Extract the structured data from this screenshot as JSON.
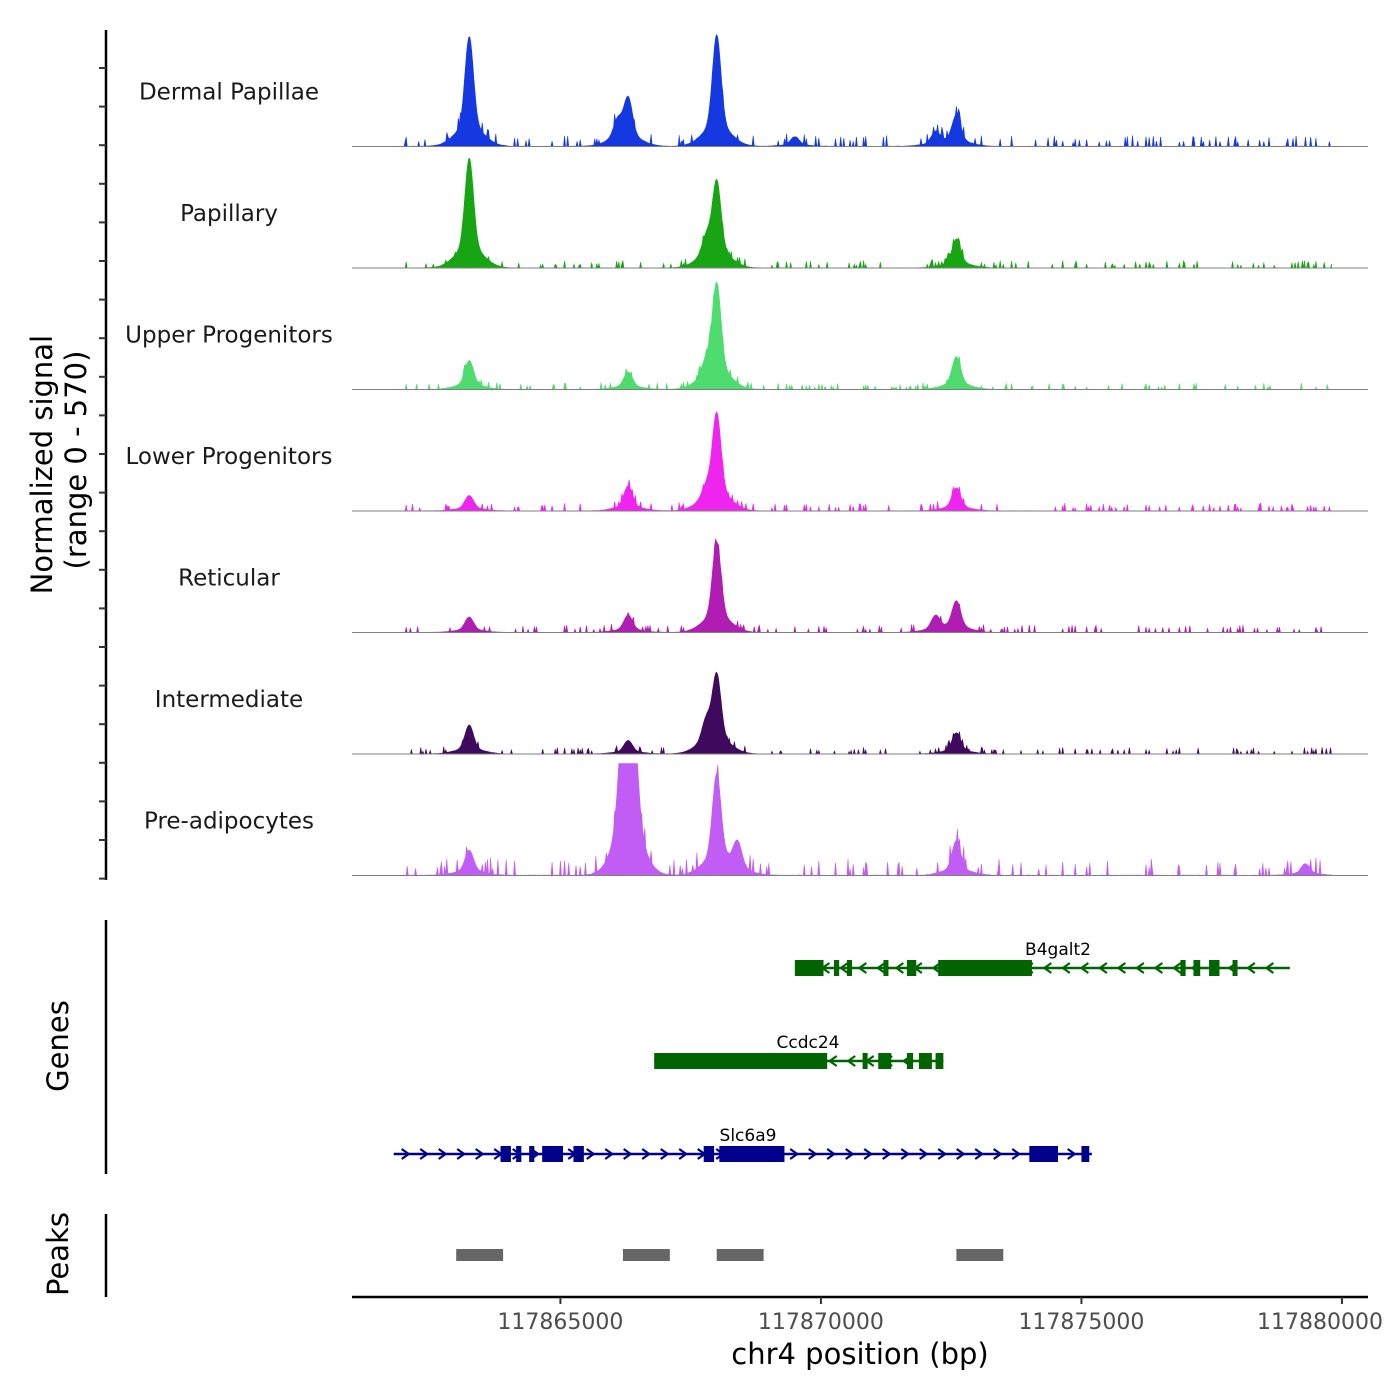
{
  "chart_data": {
    "type": "area",
    "chromosome": "chr4",
    "xlabel": "chr4 position (bp)",
    "xlim": [
      117861000,
      117880500
    ],
    "xticks": [
      117865000,
      117870000,
      117875000,
      117880000
    ],
    "xtick_labels": [
      "117865000",
      "117870000",
      "117875000",
      "117880000"
    ],
    "coverage": {
      "ylabel": "Normalized signal",
      "ylabel_range": "(range 0 - 570)",
      "ylim": [
        0,
        570
      ],
      "tracks": [
        {
          "name": "Dermal Papillae",
          "color": "#1539e0",
          "peaks": [
            [
              117863250,
              570
            ],
            [
              117866300,
              240
            ],
            [
              117868000,
              580
            ],
            [
              117872600,
              160
            ],
            [
              117866100,
              110
            ],
            [
              117872200,
              70
            ],
            [
              117869500,
              50
            ]
          ],
          "baseline": 30
        },
        {
          "name": "Papillary",
          "color": "#17a513",
          "peaks": [
            [
              117863250,
              570
            ],
            [
              117868000,
              440
            ],
            [
              117872600,
              150
            ],
            [
              117867800,
              110
            ]
          ],
          "baseline": 20
        },
        {
          "name": "Upper Progenitors",
          "color": "#4fdc6e",
          "peaks": [
            [
              117863250,
              150
            ],
            [
              117866300,
              90
            ],
            [
              117868000,
              540
            ],
            [
              117872600,
              170
            ],
            [
              117867800,
              90
            ]
          ],
          "baseline": 18
        },
        {
          "name": "Lower Progenitors",
          "color": "#ef25ef",
          "peaks": [
            [
              117863250,
              80
            ],
            [
              117866300,
              130
            ],
            [
              117868000,
              500
            ],
            [
              117872600,
              120
            ],
            [
              117867800,
              70
            ]
          ],
          "baseline": 22
        },
        {
          "name": "Reticular",
          "color": "#af1db3",
          "peaks": [
            [
              117863250,
              80
            ],
            [
              117866300,
              90
            ],
            [
              117868000,
              470
            ],
            [
              117872600,
              160
            ],
            [
              117872200,
              80
            ]
          ],
          "baseline": 20
        },
        {
          "name": "Intermediate",
          "color": "#3f0a5e",
          "peaks": [
            [
              117863250,
              150
            ],
            [
              117866300,
              70
            ],
            [
              117868000,
              400
            ],
            [
              117872600,
              110
            ],
            [
              117867800,
              130
            ]
          ],
          "baseline": 18
        },
        {
          "name": "Pre-adipocytes",
          "color": "#c15cf5",
          "peaks": [
            [
              117866300,
              1400
            ],
            [
              117868000,
              520
            ],
            [
              117872600,
              180
            ],
            [
              117863250,
              130
            ],
            [
              117879300,
              60
            ],
            [
              117868400,
              150
            ]
          ],
          "baseline": 45
        }
      ]
    },
    "genes": {
      "ylabel": "Genes",
      "items": [
        {
          "name": "B4galt2",
          "strand": "-",
          "color": "#006400",
          "start": 117869500,
          "end": 117879000,
          "exons": [
            [
              117869500,
              117870050
            ],
            [
              117870250,
              117870350
            ],
            [
              117870500,
              117870560
            ],
            [
              117871200,
              117871270
            ],
            [
              117871650,
              117871830
            ],
            [
              117872250,
              117874050
            ],
            [
              117876900,
              117877000
            ],
            [
              117877150,
              117877280
            ],
            [
              117877450,
              117877650
            ],
            [
              117877900,
              117877950
            ]
          ]
        },
        {
          "name": "Ccdc24",
          "strand": "-",
          "color": "#006400",
          "start": 117866800,
          "end": 117872350,
          "exons": [
            [
              117866800,
              117870120
            ],
            [
              117870800,
              117870850
            ],
            [
              117871100,
              117871350
            ],
            [
              117871650,
              117871770
            ],
            [
              117871880,
              117872130
            ],
            [
              117872200,
              117872350
            ]
          ]
        },
        {
          "name": "Slc6a9",
          "strand": "+",
          "color": "#00008b",
          "start": 117861800,
          "end": 117875200,
          "exons": [
            [
              117863850,
              117864050
            ],
            [
              117864150,
              117864250
            ],
            [
              117864400,
              117864500
            ],
            [
              117864650,
              117865050
            ],
            [
              117865250,
              117865450
            ],
            [
              117867750,
              117867950
            ],
            [
              117868050,
              117869300
            ],
            [
              117874000,
              117874550
            ],
            [
              117875000,
              117875150
            ]
          ]
        }
      ]
    },
    "peaks_track": {
      "ylabel": "Peaks",
      "color": "#666666",
      "regions": [
        [
          117863000,
          117863900
        ],
        [
          117866200,
          117867100
        ],
        [
          117868000,
          117868900
        ],
        [
          117872600,
          117873500
        ]
      ]
    }
  }
}
